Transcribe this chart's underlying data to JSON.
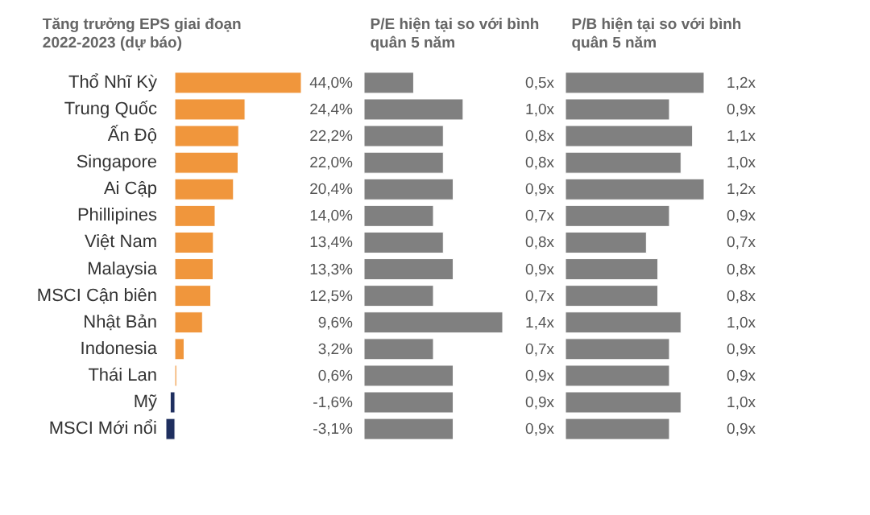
{
  "chart_data": [
    {
      "type": "bar",
      "orientation": "horizontal",
      "title": "Tăng trưởng EPS giai đoạn 2022-2023 (dự báo)",
      "categories": [
        "Thổ Nhĩ Kỳ",
        "Trung Quốc",
        "Ấn Độ",
        "Singapore",
        "Ai Cập",
        "Phillipines",
        "Việt Nam",
        "Malaysia",
        "MSCI Cận biên",
        "Nhật Bản",
        "Indonesia",
        "Thái Lan",
        "Mỹ",
        "MSCI Mới nổi"
      ],
      "values": [
        44.0,
        24.4,
        22.2,
        22.0,
        20.4,
        14.0,
        13.4,
        13.3,
        12.5,
        9.6,
        3.2,
        0.6,
        -1.6,
        -3.1
      ],
      "colors": [
        "#f0963c",
        "#f0963c",
        "#f0963c",
        "#f0963c",
        "#f0963c",
        "#f0963c",
        "#f0963c",
        "#f0963c",
        "#f0963c",
        "#f0963c",
        "#f0963c",
        "#f0963c",
        "#1f2f5f",
        "#1f2f5f"
      ],
      "value_labels": [
        "44,0%",
        "24,4%",
        "22,2%",
        "22,0%",
        "20,4%",
        "14,0%",
        "13,4%",
        "13,3%",
        "12,5%",
        "9,6%",
        "3,2%",
        "0,6%",
        "-1,6%",
        "-3,1%"
      ],
      "tick_labels": "y"
    },
    {
      "type": "bar",
      "orientation": "horizontal",
      "title": "P/E hiện tại so với bình quân 5 năm",
      "values": [
        0.5,
        1.0,
        0.8,
        0.8,
        0.9,
        0.7,
        0.8,
        0.9,
        0.7,
        1.4,
        0.7,
        0.9,
        0.9,
        0.9
      ],
      "color": "#808080",
      "value_labels": [
        "0,5x",
        "1,0x",
        "0,8x",
        "0,8x",
        "0,9x",
        "0,7x",
        "0,8x",
        "0,9x",
        "0,7x",
        "1,4x",
        "0,7x",
        "0,9x",
        "0,9x",
        "0,9x"
      ],
      "tick_labels": false
    },
    {
      "type": "bar",
      "orientation": "horizontal",
      "title": "P/B hiện tại so với bình quân 5 năm",
      "values": [
        1.2,
        0.9,
        1.1,
        1.0,
        1.2,
        0.9,
        0.7,
        0.8,
        0.8,
        1.0,
        0.9,
        0.9,
        1.0,
        0.9
      ],
      "color": "#808080",
      "value_labels": [
        "1,2x",
        "0,9x",
        "1,1x",
        "1,0x",
        "1,2x",
        "0,9x",
        "0,7x",
        "0,8x",
        "0,8x",
        "1,0x",
        "0,9x",
        "0,9x",
        "1,0x",
        "0,9x"
      ],
      "tick_labels": false
    }
  ]
}
